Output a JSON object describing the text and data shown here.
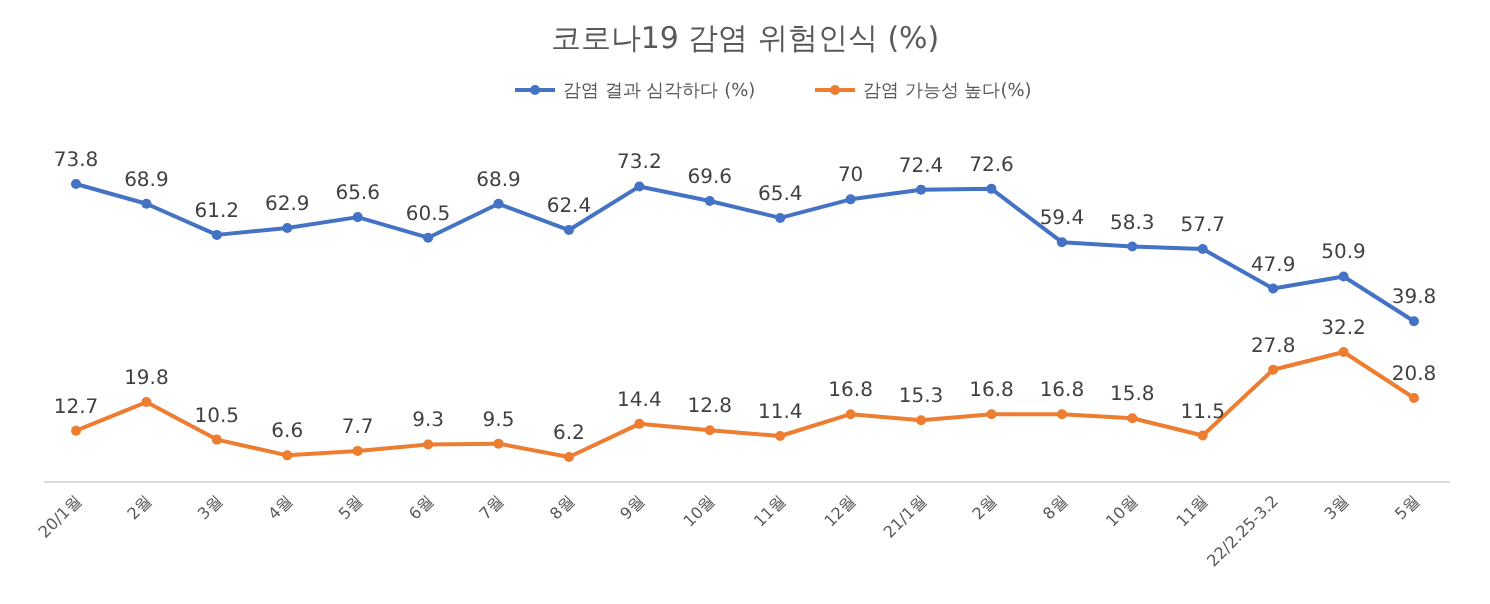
{
  "chart_data": {
    "type": "line",
    "title": "코로나19 감염 위험인식 (%)",
    "categories": [
      "20/1월",
      "2월",
      "3월",
      "4월",
      "5월",
      "6월",
      "7월",
      "8월",
      "9월",
      "10월",
      "11월",
      "12월",
      "21/1월",
      "2월",
      "8월",
      "10월",
      "11월",
      "22/2.25-3.2",
      "3월",
      "5월"
    ],
    "series": [
      {
        "name": "감염 결과 심각하다 (%)",
        "color": "#4472c4",
        "values": [
          73.8,
          68.9,
          61.2,
          62.9,
          65.6,
          60.5,
          68.9,
          62.4,
          73.2,
          69.6,
          65.4,
          70,
          72.4,
          72.6,
          59.4,
          58.3,
          57.7,
          47.9,
          50.9,
          39.8
        ]
      },
      {
        "name": "감염 가능성 높다(%)",
        "color": "#ed7d31",
        "values": [
          12.7,
          19.8,
          10.5,
          6.6,
          7.7,
          9.3,
          9.5,
          6.2,
          14.4,
          12.8,
          11.4,
          16.8,
          15.3,
          16.8,
          16.8,
          15.8,
          11.5,
          27.8,
          32.2,
          20.8
        ]
      }
    ],
    "data_labels": true,
    "marker": "circle",
    "line_style": "solid",
    "legend": "top",
    "grid": false
  }
}
